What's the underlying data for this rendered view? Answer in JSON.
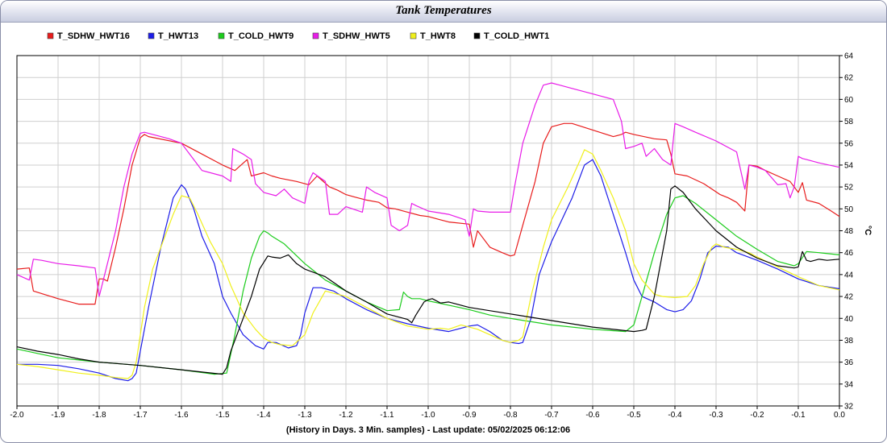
{
  "window": {
    "title": "Tank Temperatures"
  },
  "chart_data": {
    "type": "line",
    "title": "Tank Temperatures",
    "xlabel": "(History in Days. 3 Min. samples) - Last update: 05/02/2025 06:12:06",
    "ylabel": "°C",
    "xlim": [
      -2.0,
      0.0
    ],
    "ylim": [
      32,
      64
    ],
    "x_ticks": [
      "-2.0",
      "-1.9",
      "-1.8",
      "-1.7",
      "-1.6",
      "-1.5",
      "-1.4",
      "-1.3",
      "-1.2",
      "-1.1",
      "-1.0",
      "-0.9",
      "-0.8",
      "-0.7",
      "-0.6",
      "-0.5",
      "-0.4",
      "-0.3",
      "-0.2",
      "-0.1",
      "0.0"
    ],
    "y_ticks": [
      "32",
      "34",
      "36",
      "38",
      "40",
      "42",
      "44",
      "46",
      "48",
      "50",
      "52",
      "54",
      "56",
      "58",
      "60",
      "62",
      "64"
    ],
    "grid": true,
    "legend_position": "top-left",
    "series": [
      {
        "name": "T_SDHW_HWT16",
        "color": "#e81c1c",
        "x": [
          -2.0,
          -1.97,
          -1.96,
          -1.9,
          -1.85,
          -1.81,
          -1.8,
          -1.79,
          -1.78,
          -1.76,
          -1.74,
          -1.72,
          -1.7,
          -1.69,
          -1.68,
          -1.6,
          -1.55,
          -1.5,
          -1.47,
          -1.44,
          -1.43,
          -1.4,
          -1.38,
          -1.36,
          -1.32,
          -1.29,
          -1.27,
          -1.24,
          -1.22,
          -1.2,
          -1.18,
          -1.15,
          -1.12,
          -1.1,
          -1.08,
          -1.05,
          -1.02,
          -1.0,
          -0.97,
          -0.95,
          -0.9,
          -0.89,
          -0.88,
          -0.87,
          -0.85,
          -0.82,
          -0.8,
          -0.79,
          -0.77,
          -0.74,
          -0.72,
          -0.7,
          -0.67,
          -0.65,
          -0.6,
          -0.55,
          -0.53,
          -0.52,
          -0.5,
          -0.45,
          -0.42,
          -0.41,
          -0.4,
          -0.37,
          -0.33,
          -0.29,
          -0.27,
          -0.25,
          -0.23,
          -0.22,
          -0.2,
          -0.18,
          -0.15,
          -0.12,
          -0.1,
          -0.09,
          -0.08,
          -0.05,
          -0.02,
          0.0
        ],
        "y": [
          44.5,
          44.6,
          42.5,
          41.8,
          41.3,
          41.3,
          43.6,
          43.6,
          43.4,
          46.5,
          50.0,
          54.0,
          56.5,
          56.8,
          56.6,
          56.0,
          55.0,
          54.0,
          53.5,
          54.5,
          53.0,
          53.3,
          53.0,
          52.8,
          52.5,
          52.2,
          53.0,
          52.0,
          51.7,
          51.3,
          51.1,
          50.8,
          50.6,
          50.1,
          50.0,
          49.7,
          49.4,
          49.3,
          49.0,
          48.8,
          48.6,
          46.5,
          48.0,
          47.5,
          46.5,
          46.0,
          45.7,
          45.8,
          48.5,
          52.5,
          56.0,
          57.5,
          57.8,
          57.8,
          57.2,
          56.6,
          56.8,
          57.0,
          56.8,
          56.4,
          56.3,
          55.0,
          53.2,
          53.0,
          52.3,
          51.3,
          51.0,
          50.6,
          49.8,
          54.0,
          53.9,
          53.5,
          53.0,
          52.5,
          51.5,
          52.4,
          50.8,
          50.5,
          49.8,
          49.3
        ]
      },
      {
        "name": "T_HWT13",
        "color": "#1c1ce8",
        "x": [
          -2.0,
          -1.95,
          -1.9,
          -1.85,
          -1.8,
          -1.76,
          -1.73,
          -1.72,
          -1.71,
          -1.68,
          -1.65,
          -1.62,
          -1.6,
          -1.59,
          -1.57,
          -1.55,
          -1.52,
          -1.5,
          -1.48,
          -1.45,
          -1.42,
          -1.4,
          -1.39,
          -1.37,
          -1.34,
          -1.32,
          -1.31,
          -1.3,
          -1.28,
          -1.26,
          -1.23,
          -1.2,
          -1.15,
          -1.1,
          -1.05,
          -1.0,
          -0.95,
          -0.9,
          -0.88,
          -0.85,
          -0.82,
          -0.8,
          -0.78,
          -0.77,
          -0.75,
          -0.73,
          -0.7,
          -0.65,
          -0.62,
          -0.6,
          -0.58,
          -0.55,
          -0.52,
          -0.5,
          -0.48,
          -0.45,
          -0.42,
          -0.4,
          -0.38,
          -0.36,
          -0.34,
          -0.32,
          -0.3,
          -0.27,
          -0.25,
          -0.2,
          -0.15,
          -0.1,
          -0.05,
          0.0
        ],
        "y": [
          35.8,
          35.8,
          35.7,
          35.4,
          35.0,
          34.5,
          34.3,
          34.5,
          35.0,
          41.0,
          46.5,
          51.0,
          52.2,
          51.8,
          50.0,
          47.5,
          45.0,
          42.0,
          40.5,
          38.5,
          37.5,
          37.2,
          37.8,
          37.8,
          37.3,
          37.5,
          38.5,
          40.5,
          42.8,
          42.8,
          42.5,
          41.8,
          40.8,
          40.0,
          39.5,
          39.1,
          38.8,
          39.3,
          39.4,
          38.8,
          38.0,
          37.8,
          37.7,
          37.8,
          40.0,
          44.0,
          47.0,
          51.0,
          54.0,
          54.5,
          53.0,
          49.5,
          46.0,
          43.5,
          42.0,
          41.5,
          40.8,
          40.6,
          40.8,
          41.6,
          43.5,
          46.0,
          46.6,
          46.5,
          46.0,
          45.3,
          44.5,
          43.6,
          43.0,
          42.7
        ]
      },
      {
        "name": "T_COLD_HWT9",
        "color": "#1ccc1c",
        "x": [
          -2.0,
          -1.95,
          -1.9,
          -1.8,
          -1.7,
          -1.6,
          -1.52,
          -1.49,
          -1.47,
          -1.45,
          -1.43,
          -1.41,
          -1.4,
          -1.39,
          -1.38,
          -1.35,
          -1.3,
          -1.25,
          -1.2,
          -1.15,
          -1.1,
          -1.07,
          -1.06,
          -1.05,
          -1.04,
          -1.02,
          -1.0,
          -0.95,
          -0.9,
          -0.85,
          -0.8,
          -0.7,
          -0.6,
          -0.52,
          -0.5,
          -0.48,
          -0.45,
          -0.42,
          -0.4,
          -0.38,
          -0.35,
          -0.3,
          -0.25,
          -0.2,
          -0.15,
          -0.11,
          -0.1,
          -0.08,
          -0.05,
          0.0
        ],
        "y": [
          37.2,
          36.8,
          36.4,
          36.0,
          35.7,
          35.3,
          34.9,
          35.0,
          38.5,
          42.5,
          45.5,
          47.5,
          48.0,
          47.8,
          47.5,
          46.8,
          45.0,
          43.5,
          42.5,
          41.5,
          40.7,
          40.8,
          42.4,
          42.0,
          41.8,
          41.8,
          41.6,
          41.2,
          40.8,
          40.3,
          40.0,
          39.4,
          39.0,
          38.8,
          39.4,
          42.0,
          46.0,
          49.5,
          51.0,
          51.2,
          50.5,
          49.0,
          47.5,
          46.3,
          45.2,
          44.8,
          45.0,
          46.1,
          46.0,
          45.8
        ]
      },
      {
        "name": "T_SDHW_HWT5",
        "color": "#e81ce8",
        "x": [
          -2.0,
          -1.97,
          -1.96,
          -1.94,
          -1.9,
          -1.85,
          -1.81,
          -1.8,
          -1.78,
          -1.76,
          -1.74,
          -1.72,
          -1.7,
          -1.69,
          -1.65,
          -1.63,
          -1.6,
          -1.57,
          -1.55,
          -1.5,
          -1.48,
          -1.475,
          -1.45,
          -1.43,
          -1.42,
          -1.4,
          -1.37,
          -1.35,
          -1.33,
          -1.3,
          -1.29,
          -1.28,
          -1.25,
          -1.24,
          -1.22,
          -1.2,
          -1.16,
          -1.15,
          -1.13,
          -1.1,
          -1.09,
          -1.07,
          -1.05,
          -1.04,
          -1.03,
          -1.0,
          -0.95,
          -0.91,
          -0.9,
          -0.89,
          -0.88,
          -0.85,
          -0.8,
          -0.79,
          -0.77,
          -0.74,
          -0.72,
          -0.7,
          -0.68,
          -0.65,
          -0.6,
          -0.55,
          -0.53,
          -0.52,
          -0.5,
          -0.48,
          -0.47,
          -0.45,
          -0.43,
          -0.41,
          -0.4,
          -0.38,
          -0.35,
          -0.3,
          -0.25,
          -0.23,
          -0.22,
          -0.2,
          -0.18,
          -0.15,
          -0.13,
          -0.12,
          -0.11,
          -0.1,
          -0.09,
          -0.08,
          -0.05,
          0.0
        ],
        "y": [
          44.0,
          43.5,
          45.4,
          45.3,
          45.0,
          44.8,
          44.6,
          42.0,
          45.0,
          48.0,
          52.0,
          55.0,
          56.9,
          57.0,
          56.6,
          56.4,
          56.0,
          54.5,
          53.5,
          53.0,
          52.5,
          55.5,
          55.0,
          54.5,
          52.3,
          51.5,
          51.2,
          51.8,
          51.0,
          50.5,
          52.5,
          53.3,
          52.5,
          49.5,
          49.5,
          50.2,
          49.7,
          52.0,
          51.5,
          51.0,
          48.5,
          48.0,
          48.5,
          50.5,
          50.3,
          49.8,
          49.5,
          49.0,
          47.5,
          50.0,
          49.8,
          49.7,
          49.7,
          52.0,
          56.0,
          59.5,
          61.3,
          61.5,
          61.3,
          61.0,
          60.5,
          60.0,
          58.0,
          55.5,
          55.7,
          56.0,
          54.8,
          55.5,
          54.5,
          54.0,
          57.8,
          57.5,
          57.0,
          56.2,
          55.2,
          51.8,
          54.0,
          53.8,
          53.5,
          52.2,
          52.3,
          51.0,
          52.0,
          54.8,
          54.6,
          54.5,
          54.2,
          53.8
        ]
      },
      {
        "name": "T_HWT8",
        "color": "#f0f01c",
        "x": [
          -2.0,
          -1.95,
          -1.9,
          -1.85,
          -1.8,
          -1.76,
          -1.73,
          -1.72,
          -1.71,
          -1.69,
          -1.67,
          -1.65,
          -1.62,
          -1.6,
          -1.58,
          -1.56,
          -1.53,
          -1.5,
          -1.48,
          -1.45,
          -1.42,
          -1.4,
          -1.38,
          -1.36,
          -1.33,
          -1.3,
          -1.28,
          -1.25,
          -1.2,
          -1.15,
          -1.1,
          -1.05,
          -1.0,
          -0.97,
          -0.95,
          -0.92,
          -0.9,
          -0.88,
          -0.85,
          -0.82,
          -0.8,
          -0.78,
          -0.77,
          -0.75,
          -0.72,
          -0.7,
          -0.66,
          -0.63,
          -0.62,
          -0.6,
          -0.58,
          -0.55,
          -0.52,
          -0.5,
          -0.48,
          -0.45,
          -0.43,
          -0.4,
          -0.37,
          -0.35,
          -0.33,
          -0.31,
          -0.3,
          -0.28,
          -0.25,
          -0.22,
          -0.2,
          -0.15,
          -0.1,
          -0.05,
          0.0
        ],
        "y": [
          35.8,
          35.6,
          35.3,
          35.0,
          34.8,
          34.6,
          34.5,
          34.8,
          36.0,
          41.0,
          44.5,
          46.5,
          49.5,
          51.2,
          51.0,
          49.5,
          47.0,
          45.0,
          43.0,
          40.5,
          39.0,
          38.2,
          37.8,
          37.6,
          37.5,
          38.5,
          40.5,
          42.5,
          42.0,
          41.0,
          40.0,
          39.3,
          39.0,
          39.1,
          39.0,
          39.4,
          39.2,
          39.0,
          38.5,
          38.0,
          37.8,
          38.0,
          38.3,
          42.0,
          46.5,
          49.0,
          52.0,
          54.5,
          55.4,
          55.0,
          53.5,
          51.0,
          48.0,
          45.0,
          43.5,
          42.2,
          42.0,
          41.9,
          42.0,
          43.0,
          45.0,
          46.5,
          46.8,
          46.5,
          46.3,
          46.0,
          45.6,
          44.7,
          43.8,
          43.0,
          42.6
        ]
      },
      {
        "name": "T_COLD_HWT1",
        "color": "#000000",
        "x": [
          -2.0,
          -1.95,
          -1.9,
          -1.85,
          -1.8,
          -1.7,
          -1.6,
          -1.55,
          -1.5,
          -1.49,
          -1.48,
          -1.47,
          -1.45,
          -1.43,
          -1.41,
          -1.39,
          -1.38,
          -1.36,
          -1.34,
          -1.32,
          -1.3,
          -1.25,
          -1.2,
          -1.15,
          -1.1,
          -1.05,
          -1.04,
          -1.03,
          -1.01,
          -1.0,
          -0.99,
          -0.97,
          -0.95,
          -0.9,
          -0.8,
          -0.7,
          -0.6,
          -0.5,
          -0.48,
          -0.47,
          -0.45,
          -0.42,
          -0.41,
          -0.4,
          -0.38,
          -0.35,
          -0.32,
          -0.3,
          -0.25,
          -0.2,
          -0.15,
          -0.11,
          -0.1,
          -0.09,
          -0.08,
          -0.07,
          -0.05,
          -0.03,
          0.0
        ],
        "y": [
          37.4,
          37.0,
          36.7,
          36.3,
          36.0,
          35.7,
          35.3,
          35.1,
          34.9,
          35.5,
          37.0,
          38.0,
          40.0,
          42.0,
          44.5,
          45.7,
          45.6,
          45.5,
          45.8,
          45.0,
          44.5,
          43.8,
          42.5,
          41.5,
          40.4,
          39.9,
          39.6,
          40.3,
          41.5,
          41.7,
          41.8,
          41.4,
          41.5,
          41.0,
          40.4,
          39.8,
          39.2,
          38.8,
          38.9,
          39.0,
          42.0,
          48.0,
          51.8,
          52.1,
          51.5,
          50.0,
          48.8,
          48.0,
          46.5,
          45.5,
          44.8,
          44.6,
          44.7,
          46.1,
          45.3,
          45.2,
          45.4,
          45.3,
          45.4
        ]
      }
    ]
  }
}
